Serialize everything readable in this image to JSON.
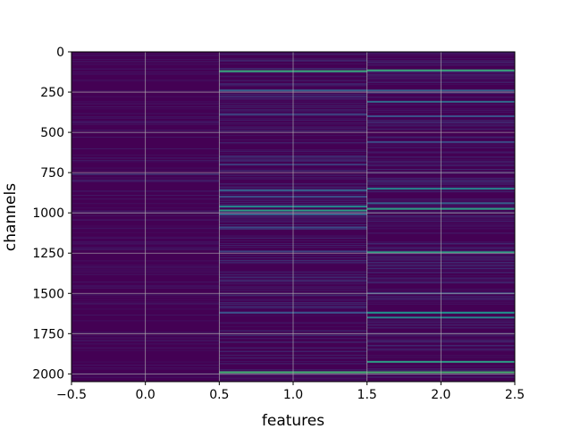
{
  "chart_data": {
    "type": "heatmap",
    "title": "",
    "xlabel": "features",
    "ylabel": "channels",
    "xlim": [
      -0.5,
      2.5
    ],
    "ylim": [
      2048,
      0
    ],
    "x_ticks": [
      -0.5,
      0.0,
      0.5,
      1.0,
      1.5,
      2.0,
      2.5
    ],
    "x_tick_labels": [
      "−0.5",
      "0.0",
      "0.5",
      "1.0",
      "1.5",
      "2.0",
      "2.5"
    ],
    "y_ticks": [
      0,
      250,
      500,
      750,
      1000,
      1250,
      1500,
      1750,
      2000
    ],
    "y_tick_labels": [
      "0",
      "250",
      "500",
      "750",
      "1000",
      "1250",
      "1500",
      "1750",
      "2000"
    ],
    "grid": true,
    "colormap": "viridis",
    "columns": [
      0,
      1,
      2
    ],
    "n_channels": 2048,
    "base_color": "#440154",
    "column_highlights": [
      {
        "column": 0,
        "rows": [
          {
            "channel": 760,
            "value": 0.12
          },
          {
            "channel": 800,
            "value": 0.08
          },
          {
            "channel": 990,
            "value": 0.06
          }
        ]
      },
      {
        "column": 1,
        "rows": [
          {
            "channel": 120,
            "value": 0.6
          },
          {
            "channel": 240,
            "value": 0.3
          },
          {
            "channel": 390,
            "value": 0.2
          },
          {
            "channel": 700,
            "value": 0.18
          },
          {
            "channel": 860,
            "value": 0.3
          },
          {
            "channel": 900,
            "value": 0.25
          },
          {
            "channel": 960,
            "value": 0.45
          },
          {
            "channel": 985,
            "value": 0.55
          },
          {
            "channel": 1010,
            "value": 0.3
          },
          {
            "channel": 1090,
            "value": 0.22
          },
          {
            "channel": 1240,
            "value": 0.2
          },
          {
            "channel": 1620,
            "value": 0.25
          },
          {
            "channel": 1990,
            "value": 0.65
          }
        ]
      },
      {
        "column": 2,
        "rows": [
          {
            "channel": 115,
            "value": 0.6
          },
          {
            "channel": 240,
            "value": 0.3
          },
          {
            "channel": 310,
            "value": 0.35
          },
          {
            "channel": 400,
            "value": 0.25
          },
          {
            "channel": 560,
            "value": 0.22
          },
          {
            "channel": 850,
            "value": 0.45
          },
          {
            "channel": 940,
            "value": 0.3
          },
          {
            "channel": 975,
            "value": 0.55
          },
          {
            "channel": 1245,
            "value": 0.55
          },
          {
            "channel": 1500,
            "value": 0.2
          },
          {
            "channel": 1620,
            "value": 0.5
          },
          {
            "channel": 1650,
            "value": 0.45
          },
          {
            "channel": 1925,
            "value": 0.55
          },
          {
            "channel": 1990,
            "value": 0.65
          }
        ]
      }
    ]
  }
}
